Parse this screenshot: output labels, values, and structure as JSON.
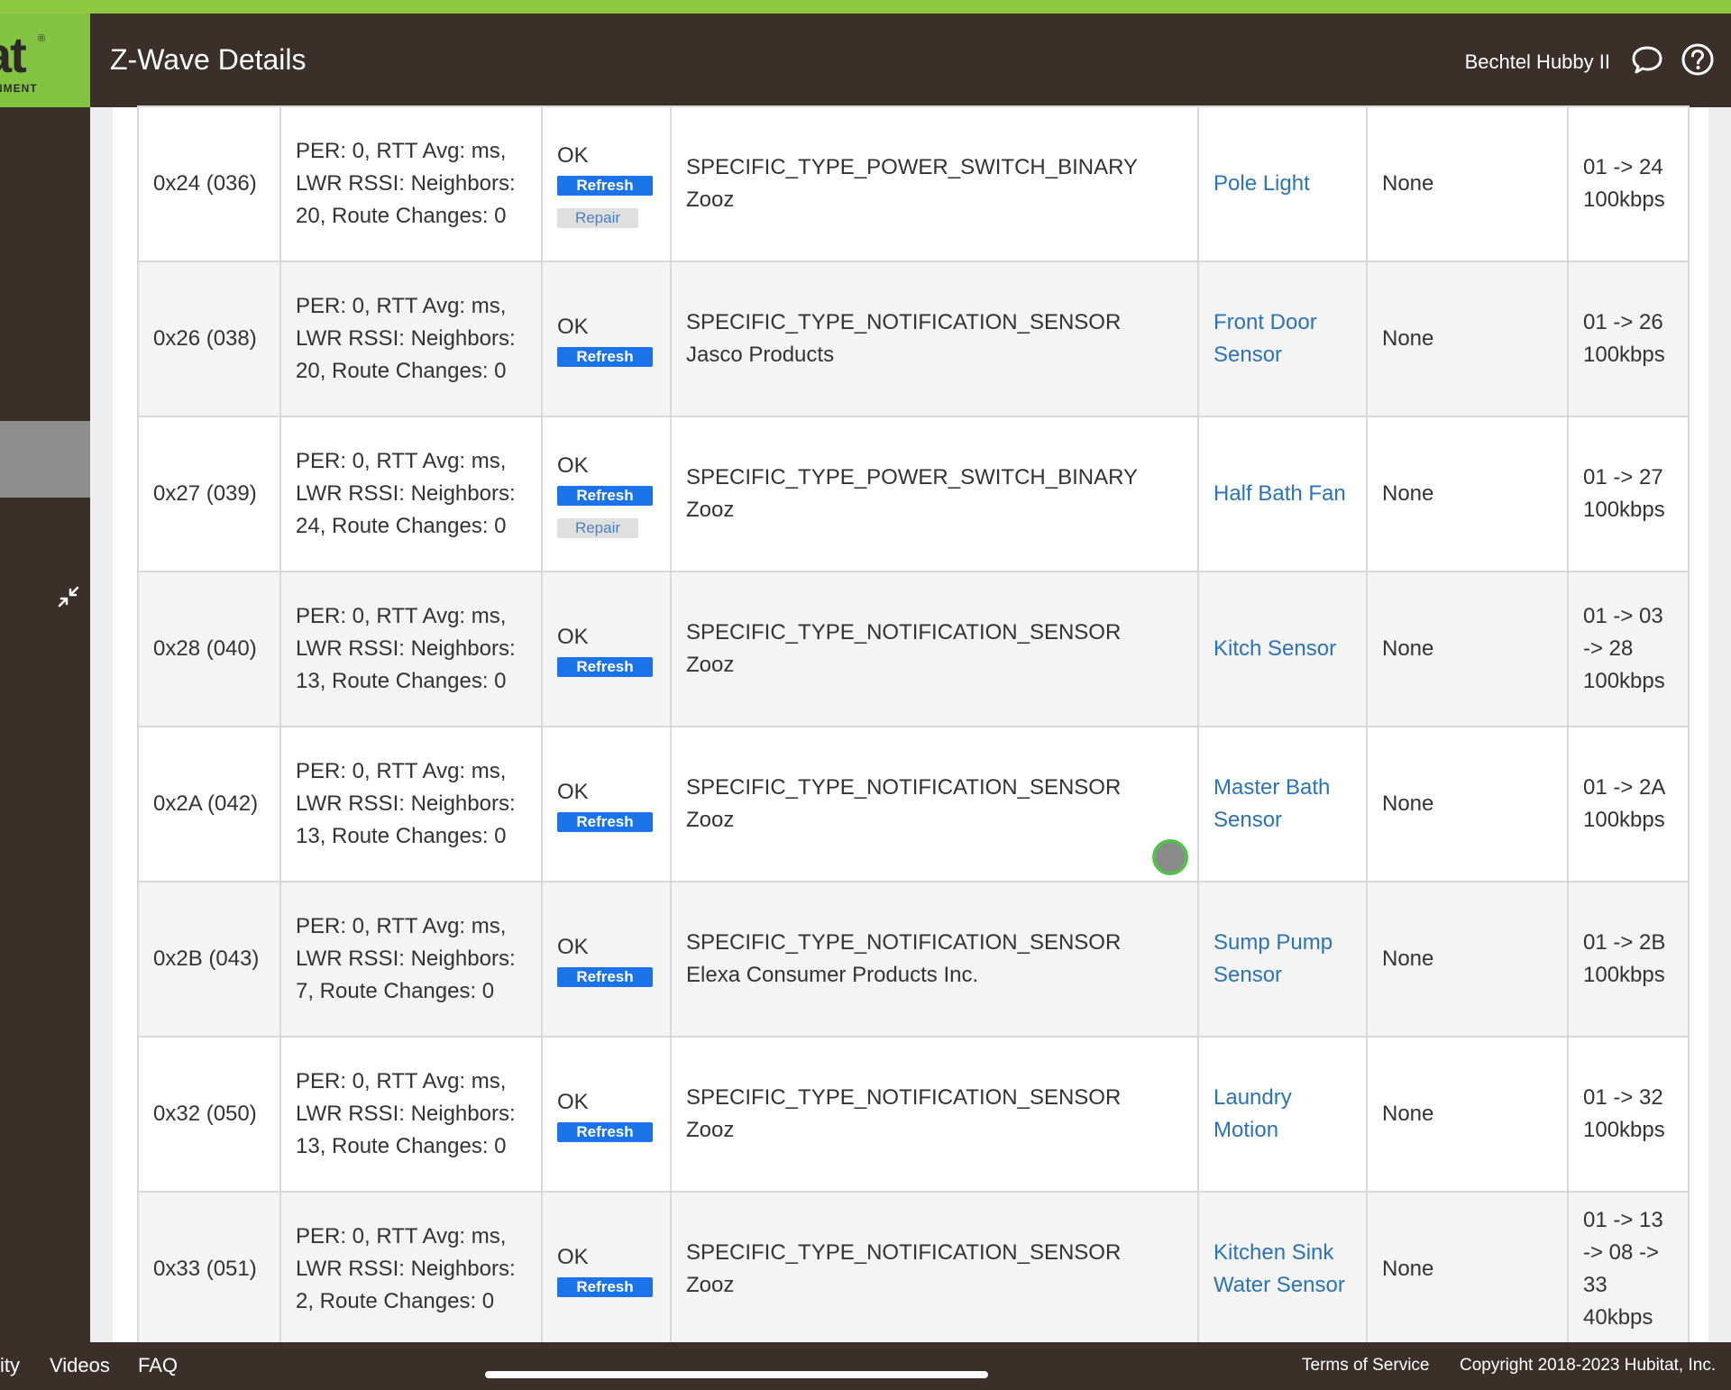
{
  "header": {
    "logo_text": "at",
    "logo_sub": "NMENT",
    "title": "Z-Wave Details",
    "hub_name": "Bechtel Hubby II"
  },
  "icons": {
    "chat": "chat-bubble-icon",
    "help": "help-circle-icon",
    "collapse": "collapse-arrows-icon"
  },
  "colors": {
    "brand_green": "#82c341",
    "header_bg": "#3b2f2a",
    "refresh_button": "#1a73e8",
    "link": "#2a73b7"
  },
  "rows": [
    {
      "node": "0x24 (036)",
      "stats": "PER: 0, RTT Avg: ms, LWR RSSI: Neighbors: 20, Route Changes: 0",
      "status": "OK",
      "refresh": "Refresh",
      "repair": "Repair",
      "device_type": "SPECIFIC_TYPE_POWER_SWITCH_BINARY",
      "manufacturer": "Zooz",
      "name": "Pole Light",
      "security": "None",
      "route": "01 -> 24 100kbps"
    },
    {
      "node": "0x26 (038)",
      "stats": "PER: 0, RTT Avg: ms, LWR RSSI: Neighbors: 20, Route Changes: 0",
      "status": "OK",
      "refresh": "Refresh",
      "repair": "",
      "device_type": "SPECIFIC_TYPE_NOTIFICATION_SENSOR",
      "manufacturer": "Jasco Products",
      "name": "Front Door Sensor",
      "security": "None",
      "route": "01 -> 26 100kbps"
    },
    {
      "node": "0x27 (039)",
      "stats": "PER: 0, RTT Avg: ms, LWR RSSI: Neighbors: 24, Route Changes: 0",
      "status": "OK",
      "refresh": "Refresh",
      "repair": "Repair",
      "device_type": "SPECIFIC_TYPE_POWER_SWITCH_BINARY",
      "manufacturer": "Zooz",
      "name": "Half Bath Fan",
      "security": "None",
      "route": "01 -> 27 100kbps"
    },
    {
      "node": "0x28 (040)",
      "stats": "PER: 0, RTT Avg: ms, LWR RSSI: Neighbors: 13, Route Changes: 0",
      "status": "OK",
      "refresh": "Refresh",
      "repair": "",
      "device_type": "SPECIFIC_TYPE_NOTIFICATION_SENSOR",
      "manufacturer": "Zooz",
      "name": "Kitch Sensor",
      "security": "None",
      "route": "01 -> 03 -> 28 100kbps"
    },
    {
      "node": "0x2A (042)",
      "stats": "PER: 0, RTT Avg: ms, LWR RSSI: Neighbors: 13, Route Changes: 0",
      "status": "OK",
      "refresh": "Refresh",
      "repair": "",
      "device_type": "SPECIFIC_TYPE_NOTIFICATION_SENSOR",
      "manufacturer": "Zooz",
      "name": "Master Bath Sensor",
      "security": "None",
      "route": "01 -> 2A 100kbps"
    },
    {
      "node": "0x2B (043)",
      "stats": "PER: 0, RTT Avg: ms, LWR RSSI: Neighbors: 7, Route Changes: 0",
      "status": "OK",
      "refresh": "Refresh",
      "repair": "",
      "device_type": "SPECIFIC_TYPE_NOTIFICATION_SENSOR",
      "manufacturer": "Elexa Consumer Products Inc.",
      "name": "Sump Pump Sensor",
      "security": "None",
      "route": "01 -> 2B 100kbps"
    },
    {
      "node": "0x32 (050)",
      "stats": "PER: 0, RTT Avg: ms, LWR RSSI: Neighbors: 13, Route Changes: 0",
      "status": "OK",
      "refresh": "Refresh",
      "repair": "",
      "device_type": "SPECIFIC_TYPE_NOTIFICATION_SENSOR",
      "manufacturer": "Zooz",
      "name": "Laundry Motion",
      "security": "None",
      "route": "01 -> 32 100kbps"
    },
    {
      "node": "0x33 (051)",
      "stats": "PER: 0, RTT Avg: ms, LWR RSSI: Neighbors: 2, Route Changes: 0",
      "status": "OK",
      "refresh": "Refresh",
      "repair": "",
      "device_type": "SPECIFIC_TYPE_NOTIFICATION_SENSOR",
      "manufacturer": "Zooz",
      "name": "Kitchen Sink Water Sensor",
      "security": "None",
      "route": "01 -> 13 -> 08 -> 33 40kbps"
    }
  ],
  "footer": {
    "community": "ity",
    "videos": "Videos",
    "faq": "FAQ",
    "terms": "Terms of Service",
    "copyright": "Copyright 2018-2023 Hubitat, Inc."
  }
}
